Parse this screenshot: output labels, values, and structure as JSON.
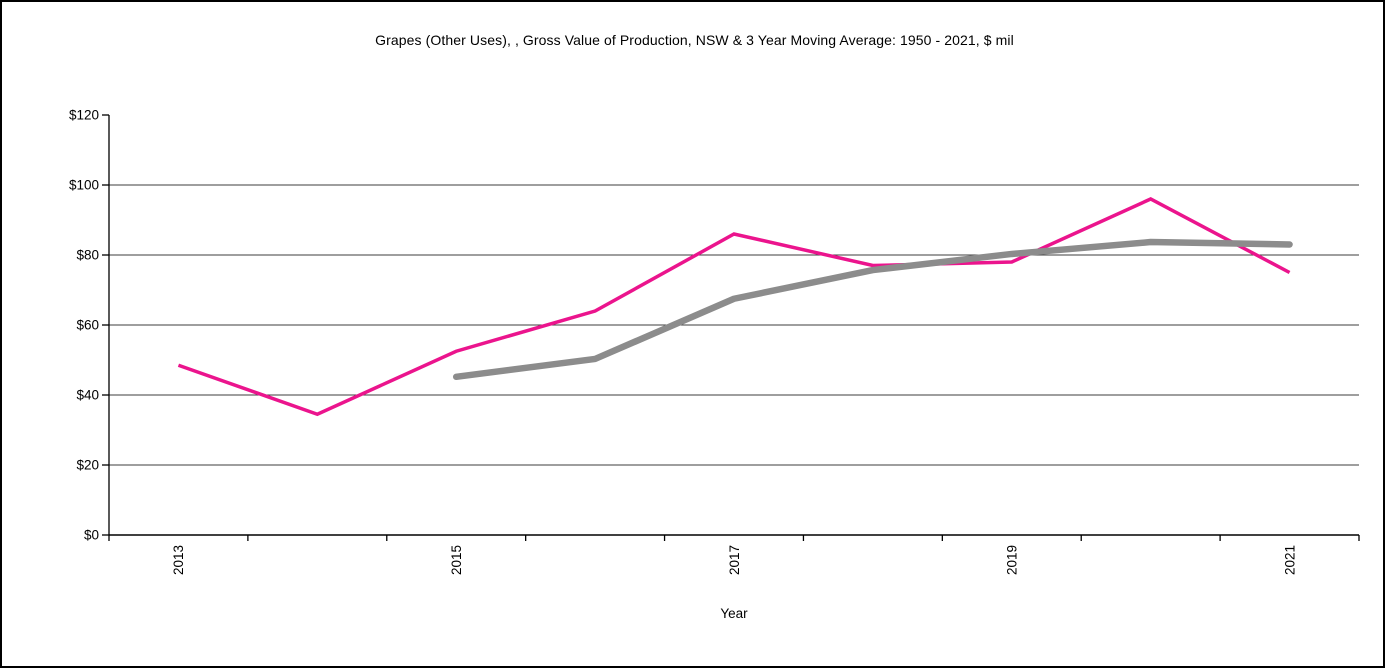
{
  "chart_data": {
    "type": "line",
    "title": "Grapes (Other Uses), , Gross Value of Production, NSW & 3 Year Moving Average: 1950 - 2021, $ mil",
    "xlabel": "Year",
    "ylabel": "",
    "x": [
      2013,
      2014,
      2015,
      2016,
      2017,
      2018,
      2019,
      2020,
      2021
    ],
    "x_axis_tick_labels": [
      "2013",
      "2015",
      "2017",
      "2019",
      "2021"
    ],
    "x_labeled_category_indices": [
      0,
      2,
      4,
      6,
      8
    ],
    "y_tick_labels": [
      "$0",
      "$20",
      "$40",
      "$60",
      "$80",
      "$100",
      "$120"
    ],
    "y_tick_values": [
      0,
      20,
      40,
      60,
      80,
      100,
      120
    ],
    "ylim": [
      0,
      120
    ],
    "gridlines": {
      "orientation": "horizontal",
      "at_values": [
        20,
        40,
        60,
        80,
        100
      ],
      "color": "#3c3c3c"
    },
    "legend_position": "none",
    "axis_color": "#000000",
    "series": [
      {
        "name": "Gross Value of Production",
        "color": "#EB148D",
        "stroke_width": 3.5,
        "linecap": "butt",
        "values": [
          48.5,
          34.5,
          52.5,
          64,
          86,
          77,
          78,
          96,
          75
        ]
      },
      {
        "name": "3 Year Moving Average",
        "color": "#8C8C8C",
        "stroke_width": 6.5,
        "linecap": "round",
        "values": [
          null,
          null,
          45.2,
          50.3,
          67.5,
          75.7,
          80.3,
          83.7,
          83
        ]
      }
    ]
  }
}
